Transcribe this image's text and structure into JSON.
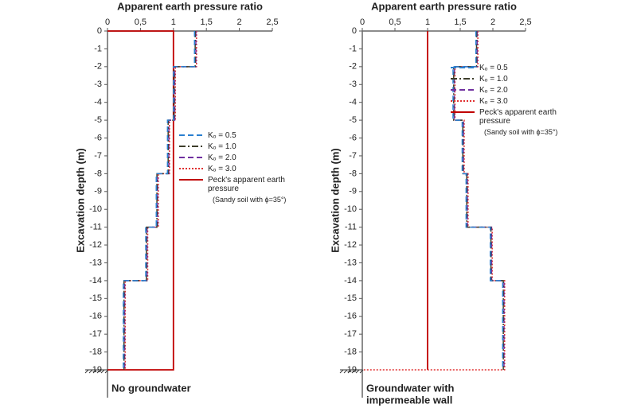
{
  "chart_data": [
    {
      "type": "line",
      "title": "Apparent earth pressure ratio",
      "y_label": "Excavation depth (m)",
      "note": [
        "No groundwater"
      ],
      "xlim": [
        0,
        2.5
      ],
      "xticks": [
        0,
        {
          "value": 0.5,
          "label": "0,5"
        },
        1,
        {
          "value": 1.5,
          "label": "1,5"
        },
        2,
        {
          "value": 2.5,
          "label": "2,5"
        }
      ],
      "ylim": [
        -19,
        0
      ],
      "yticks": [
        0,
        -1,
        -2,
        -3,
        -4,
        -5,
        -6,
        -7,
        -8,
        -9,
        -10,
        -11,
        -12,
        -13,
        -14,
        -15,
        -16,
        -17,
        -18,
        -19
      ],
      "legend_note": "(Sandy soil with ϕ=35°)",
      "series": [
        {
          "name": "Kₒ = 0.5",
          "color": "#2a7fd0",
          "style": "dashed",
          "x": [
            1.32,
            1.32,
            1.0,
            1.0,
            0.91,
            0.91,
            0.74,
            0.74,
            0.58,
            0.58,
            0.24,
            0.24
          ],
          "values": [
            0,
            -2,
            -2,
            -5,
            -5,
            -8,
            -8,
            -11,
            -11,
            -14,
            -14,
            -19
          ]
        },
        {
          "name": "Kₒ = 1.0",
          "color": "#3d3d2a",
          "style": "dashdot",
          "x": [
            1.33,
            1.33,
            1.01,
            1.01,
            0.92,
            0.92,
            0.75,
            0.75,
            0.59,
            0.59,
            0.25,
            0.25
          ],
          "values": [
            0,
            -2,
            -2,
            -5,
            -5,
            -8,
            -8,
            -11,
            -11,
            -14,
            -14,
            -19
          ]
        },
        {
          "name": "Kₒ = 2.0",
          "color": "#7030a0",
          "style": "dashed",
          "x": [
            1.34,
            1.34,
            1.02,
            1.02,
            0.93,
            0.93,
            0.76,
            0.76,
            0.6,
            0.6,
            0.26,
            0.26
          ],
          "values": [
            0,
            -2,
            -2,
            -5,
            -5,
            -8,
            -8,
            -11,
            -11,
            -14,
            -14,
            -19
          ]
        },
        {
          "name": "Kₒ = 3.0",
          "color": "#e03030",
          "style": "dotted",
          "x": [
            1.35,
            1.35,
            1.03,
            1.03,
            0.94,
            0.94,
            0.77,
            0.77,
            0.61,
            0.61,
            0.27,
            0.27
          ],
          "values": [
            0,
            -2,
            -2,
            -5,
            -5,
            -8,
            -8,
            -11,
            -11,
            -14,
            -14,
            -19
          ]
        },
        {
          "name": "Peck's apparent earth pressure",
          "color": "#c00000",
          "style": "solid",
          "x": [
            0,
            1,
            1,
            0
          ],
          "values": [
            0,
            0,
            -19,
            -19
          ]
        }
      ]
    },
    {
      "type": "line",
      "title": "Apparent earth pressure ratio",
      "y_label": "Excavation depth (m)",
      "note": [
        "Groundwater with",
        "impermeable wall"
      ],
      "xlim": [
        0,
        2.5
      ],
      "xticks": [
        0,
        {
          "value": 0.5,
          "label": "0,5"
        },
        1,
        {
          "value": 1.5,
          "label": "1,5"
        },
        2,
        {
          "value": 2.5,
          "label": "2,5"
        }
      ],
      "ylim": [
        -19,
        0
      ],
      "yticks": [
        0,
        -1,
        -2,
        -3,
        -4,
        -5,
        -6,
        -7,
        -8,
        -9,
        -10,
        -11,
        -12,
        -13,
        -14,
        -15,
        -16,
        -17,
        -18,
        -19
      ],
      "legend_note": "(Sandy soil with ϕ=35°)",
      "series": [
        {
          "name": "Kₒ = 0.5",
          "color": "#2a7fd0",
          "style": "dashed",
          "x": [
            1.74,
            1.74,
            1.39,
            1.39,
            1.53,
            1.53,
            1.59,
            1.59,
            1.96,
            1.96,
            2.15,
            2.15
          ],
          "values": [
            0,
            -2,
            -2,
            -5,
            -5,
            -8,
            -8,
            -11,
            -11,
            -14,
            -14,
            -19
          ]
        },
        {
          "name": "Kₒ = 1.0",
          "color": "#3d3d2a",
          "style": "dashdot",
          "x": [
            1.75,
            1.75,
            1.4,
            1.4,
            1.54,
            1.54,
            1.6,
            1.6,
            1.97,
            1.97,
            2.16,
            2.16
          ],
          "values": [
            0,
            -2,
            -2,
            -5,
            -5,
            -8,
            -8,
            -11,
            -11,
            -14,
            -14,
            -19
          ]
        },
        {
          "name": "Kₒ = 2.0",
          "color": "#7030a0",
          "style": "dashed",
          "x": [
            1.76,
            1.76,
            1.41,
            1.41,
            1.55,
            1.55,
            1.61,
            1.61,
            1.98,
            1.98,
            2.17,
            2.17
          ],
          "values": [
            0,
            -2,
            -2,
            -5,
            -5,
            -8,
            -8,
            -11,
            -11,
            -14,
            -14,
            -19
          ]
        },
        {
          "name": "Kₒ = 3.0",
          "color": "#e03030",
          "style": "dotted",
          "x": [
            1.77,
            1.77,
            1.42,
            1.42,
            1.56,
            1.56,
            1.62,
            1.62,
            1.99,
            1.99,
            2.18,
            2.18,
            0
          ],
          "values": [
            0,
            -2,
            -2,
            -5,
            -5,
            -8,
            -8,
            -11,
            -11,
            -14,
            -14,
            -19,
            -19
          ]
        },
        {
          "name": "Peck's apparent earth pressure",
          "color": "#c00000",
          "style": "solid",
          "x": [
            1,
            1
          ],
          "values": [
            0,
            -19
          ]
        }
      ]
    }
  ]
}
